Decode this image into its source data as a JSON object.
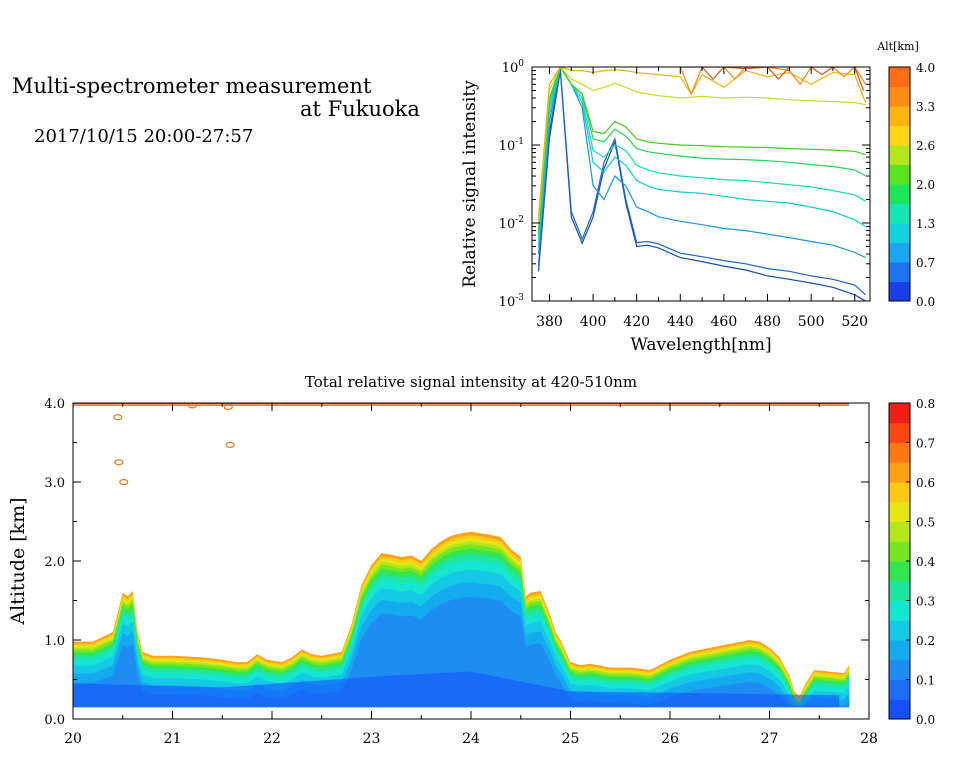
{
  "header": {
    "title_line1": "Multi-spectrometer measurement",
    "title_line2": "at Fukuoka",
    "subtitle": "2017/10/15 20:00-27:57"
  },
  "chart_data": [
    {
      "type": "line",
      "xlabel": "Wavelength[nm]",
      "ylabel": "Relative signal intensity",
      "xlim": [
        372,
        527
      ],
      "ylim": [
        0.001,
        1
      ],
      "yscale": "log",
      "x_ticks": [
        "380",
        "400",
        "420",
        "440",
        "460",
        "480",
        "500",
        "520"
      ],
      "y_ticks": [
        {
          "base": "10",
          "exp": "0",
          "value": 1
        },
        {
          "base": "10",
          "exp": "-1",
          "value": 0.1
        },
        {
          "base": "10",
          "exp": "-2",
          "value": 0.01
        },
        {
          "base": "10",
          "exp": "-3",
          "value": 0.001
        }
      ],
      "colorbar": {
        "title": "Alt[km]",
        "ticks": [
          "4.0",
          "3.3",
          "2.6",
          "2.0",
          "1.3",
          "0.7",
          "0.0"
        ],
        "colors": [
          "#1a3fe6",
          "#1e73f0",
          "#1aa6f0",
          "#14d2dc",
          "#14e6b4",
          "#1ee65a",
          "#5ae61e",
          "#b4e61e",
          "#ffd714",
          "#ffb414",
          "#ff8c14",
          "#ff6e14"
        ]
      },
      "series": [
        {
          "color": "#1a4fa8",
          "x": [
            375,
            380,
            385,
            390,
            395,
            400,
            405,
            410,
            415,
            420,
            425,
            430,
            440,
            450,
            460,
            470,
            480,
            490,
            500,
            510,
            520,
            525
          ],
          "values": [
            0.0024,
            0.12,
            0.9,
            0.012,
            0.0055,
            0.012,
            0.05,
            0.11,
            0.018,
            0.005,
            0.0052,
            0.0048,
            0.0036,
            0.0032,
            0.0028,
            0.0025,
            0.0021,
            0.0019,
            0.0017,
            0.0015,
            0.0012,
            0.001
          ]
        },
        {
          "color": "#1e64c8",
          "x": [
            375,
            380,
            385,
            390,
            395,
            400,
            405,
            410,
            415,
            420,
            425,
            430,
            440,
            450,
            460,
            470,
            480,
            490,
            500,
            510,
            520,
            525
          ],
          "values": [
            0.0028,
            0.15,
            0.95,
            0.014,
            0.0062,
            0.014,
            0.06,
            0.12,
            0.02,
            0.0056,
            0.0058,
            0.0054,
            0.0041,
            0.0037,
            0.0033,
            0.003,
            0.0026,
            0.0024,
            0.0021,
            0.0019,
            0.0016,
            0.0012
          ]
        },
        {
          "color": "#1a96e6",
          "x": [
            375,
            380,
            385,
            390,
            395,
            400,
            405,
            410,
            415,
            420,
            425,
            430,
            440,
            450,
            460,
            470,
            480,
            490,
            500,
            510,
            520,
            525
          ],
          "values": [
            0.004,
            0.2,
            1.0,
            0.6,
            0.3,
            0.03,
            0.02,
            0.04,
            0.03,
            0.016,
            0.014,
            0.012,
            0.0105,
            0.0095,
            0.0085,
            0.008,
            0.0072,
            0.0065,
            0.0058,
            0.0052,
            0.0042,
            0.0036
          ]
        },
        {
          "color": "#14c8dc",
          "x": [
            375,
            380,
            385,
            390,
            395,
            400,
            405,
            410,
            415,
            420,
            425,
            430,
            440,
            450,
            460,
            470,
            480,
            490,
            500,
            510,
            520,
            525
          ],
          "values": [
            0.005,
            0.25,
            1.0,
            0.6,
            0.35,
            0.06,
            0.045,
            0.07,
            0.055,
            0.035,
            0.03,
            0.027,
            0.025,
            0.024,
            0.022,
            0.02,
            0.019,
            0.018,
            0.016,
            0.014,
            0.011,
            0.009
          ]
        },
        {
          "color": "#14dcb4",
          "x": [
            375,
            380,
            385,
            390,
            395,
            400,
            405,
            410,
            415,
            420,
            425,
            430,
            440,
            450,
            460,
            470,
            480,
            490,
            500,
            510,
            520,
            525
          ],
          "values": [
            0.006,
            0.3,
            1.0,
            0.6,
            0.4,
            0.085,
            0.07,
            0.1,
            0.085,
            0.055,
            0.048,
            0.044,
            0.04,
            0.038,
            0.036,
            0.035,
            0.033,
            0.031,
            0.029,
            0.026,
            0.023,
            0.019
          ]
        },
        {
          "color": "#28d25a",
          "x": [
            375,
            380,
            385,
            390,
            395,
            400,
            405,
            410,
            415,
            420,
            425,
            430,
            440,
            450,
            460,
            470,
            480,
            490,
            500,
            510,
            520,
            525
          ],
          "values": [
            0.007,
            0.35,
            1.0,
            0.6,
            0.45,
            0.12,
            0.11,
            0.16,
            0.13,
            0.09,
            0.082,
            0.078,
            0.072,
            0.068,
            0.066,
            0.065,
            0.063,
            0.06,
            0.056,
            0.053,
            0.048,
            0.04
          ]
        },
        {
          "color": "#46c81e",
          "x": [
            375,
            380,
            385,
            390,
            395,
            400,
            405,
            410,
            415,
            420,
            425,
            430,
            440,
            450,
            460,
            470,
            480,
            490,
            500,
            510,
            520,
            525
          ],
          "values": [
            0.008,
            0.4,
            1.0,
            0.6,
            0.45,
            0.15,
            0.14,
            0.2,
            0.17,
            0.12,
            0.11,
            0.105,
            0.1,
            0.098,
            0.095,
            0.094,
            0.093,
            0.09,
            0.088,
            0.086,
            0.083,
            0.075
          ]
        },
        {
          "color": "#c8dc28",
          "x": [
            375,
            380,
            385,
            390,
            395,
            400,
            405,
            410,
            415,
            420,
            425,
            430,
            440,
            450,
            460,
            470,
            480,
            490,
            500,
            510,
            520,
            525
          ],
          "values": [
            0.01,
            0.5,
            1.0,
            0.7,
            0.6,
            0.5,
            0.55,
            0.62,
            0.55,
            0.48,
            0.45,
            0.43,
            0.4,
            0.42,
            0.4,
            0.41,
            0.4,
            0.38,
            0.37,
            0.36,
            0.35,
            0.33
          ]
        },
        {
          "color": "#e6b414",
          "x": [
            375,
            380,
            385,
            390,
            395,
            400,
            405,
            410,
            415,
            420,
            425,
            430,
            440,
            445,
            450,
            460,
            470,
            480,
            490,
            500,
            510,
            520,
            525
          ],
          "values": [
            0.012,
            0.6,
            1.0,
            0.9,
            0.9,
            0.85,
            0.9,
            0.92,
            0.9,
            0.85,
            0.82,
            0.8,
            0.75,
            0.45,
            0.8,
            0.55,
            0.9,
            0.75,
            0.85,
            0.6,
            0.85,
            0.8,
            0.35
          ]
        },
        {
          "color": "#f08c14",
          "x": [
            440,
            445,
            450,
            460,
            465,
            470,
            480,
            490,
            495,
            500,
            510,
            515,
            520,
            525
          ],
          "values": [
            1.0,
            0.45,
            1.0,
            1.0,
            0.7,
            1.0,
            1.0,
            0.9,
            0.6,
            1.0,
            1.0,
            0.75,
            1.0,
            0.6
          ]
        },
        {
          "color": "#d25a1e",
          "x": [
            440,
            450,
            455,
            460,
            470,
            480,
            485,
            490,
            500,
            505,
            510,
            520,
            524
          ],
          "values": [
            1.0,
            1.0,
            0.7,
            1.0,
            0.95,
            1.0,
            0.7,
            1.0,
            1.0,
            0.8,
            1.0,
            1.0,
            0.5
          ]
        }
      ]
    },
    {
      "type": "heatmap",
      "title": "Total relative signal intensity at 420-510nm",
      "ylabel": "Altitude [km]",
      "xlim": [
        20,
        28
      ],
      "ylim": [
        0,
        4
      ],
      "x_ticks": [
        "20",
        "21",
        "22",
        "23",
        "24",
        "25",
        "26",
        "27",
        "28"
      ],
      "y_ticks": [
        "0.0",
        "1.0",
        "2.0",
        "3.0",
        "4.0"
      ],
      "data_floor_km": 0.15,
      "top_km": 4.0,
      "colorbar": {
        "ticks": [
          "0.0",
          "0.1",
          "0.2",
          "0.3",
          "0.4",
          "0.5",
          "0.6",
          "0.7",
          "0.8"
        ],
        "colors": [
          "#1450ff",
          "#1e6ef5",
          "#1e8cf0",
          "#14aaf0",
          "#14c8e6",
          "#14e6d2",
          "#1ee6a0",
          "#32e650",
          "#78e61e",
          "#b4e61e",
          "#e6e614",
          "#ffc814",
          "#ffa014",
          "#ff7814",
          "#ff4614",
          "#f01e14"
        ]
      },
      "boundary": {
        "time": [
          20.0,
          20.2,
          20.4,
          20.45,
          20.5,
          20.55,
          20.6,
          20.65,
          20.7,
          20.8,
          21.0,
          21.3,
          21.5,
          21.65,
          21.75,
          21.85,
          21.95,
          22.1,
          22.2,
          22.3,
          22.4,
          22.5,
          22.7,
          22.8,
          22.9,
          23.0,
          23.1,
          23.2,
          23.3,
          23.4,
          23.5,
          23.6,
          23.7,
          23.8,
          23.9,
          24.0,
          24.1,
          24.2,
          24.3,
          24.4,
          24.5,
          24.55,
          24.6,
          24.7,
          24.8,
          24.85,
          24.9,
          25.0,
          25.1,
          25.2,
          25.4,
          25.6,
          25.8,
          26.0,
          26.2,
          26.4,
          26.6,
          26.8,
          26.9,
          27.0,
          27.1,
          27.2,
          27.25,
          27.3,
          27.35,
          27.45,
          27.6,
          27.75,
          27.8
        ],
        "altitude": [
          0.98,
          0.98,
          1.1,
          1.35,
          1.6,
          1.55,
          1.62,
          1.1,
          0.85,
          0.8,
          0.8,
          0.78,
          0.75,
          0.72,
          0.72,
          0.82,
          0.75,
          0.72,
          0.78,
          0.88,
          0.82,
          0.8,
          0.85,
          1.2,
          1.7,
          1.95,
          2.1,
          2.08,
          2.05,
          2.07,
          2.0,
          2.15,
          2.25,
          2.32,
          2.35,
          2.37,
          2.35,
          2.33,
          2.3,
          2.15,
          2.05,
          1.55,
          1.6,
          1.62,
          1.3,
          1.1,
          1.0,
          0.72,
          0.68,
          0.7,
          0.65,
          0.65,
          0.62,
          0.75,
          0.85,
          0.9,
          0.95,
          1.0,
          0.98,
          0.9,
          0.78,
          0.55,
          0.35,
          0.28,
          0.42,
          0.62,
          0.6,
          0.58,
          0.68
        ]
      },
      "speckles": [
        {
          "time": 20.45,
          "altitude": 3.82
        },
        {
          "time": 20.46,
          "altitude": 3.25
        },
        {
          "time": 20.51,
          "altitude": 3.0
        },
        {
          "time": 21.2,
          "altitude": 3.97
        },
        {
          "time": 21.56,
          "altitude": 3.95
        },
        {
          "time": 21.58,
          "altitude": 3.47
        }
      ]
    }
  ]
}
